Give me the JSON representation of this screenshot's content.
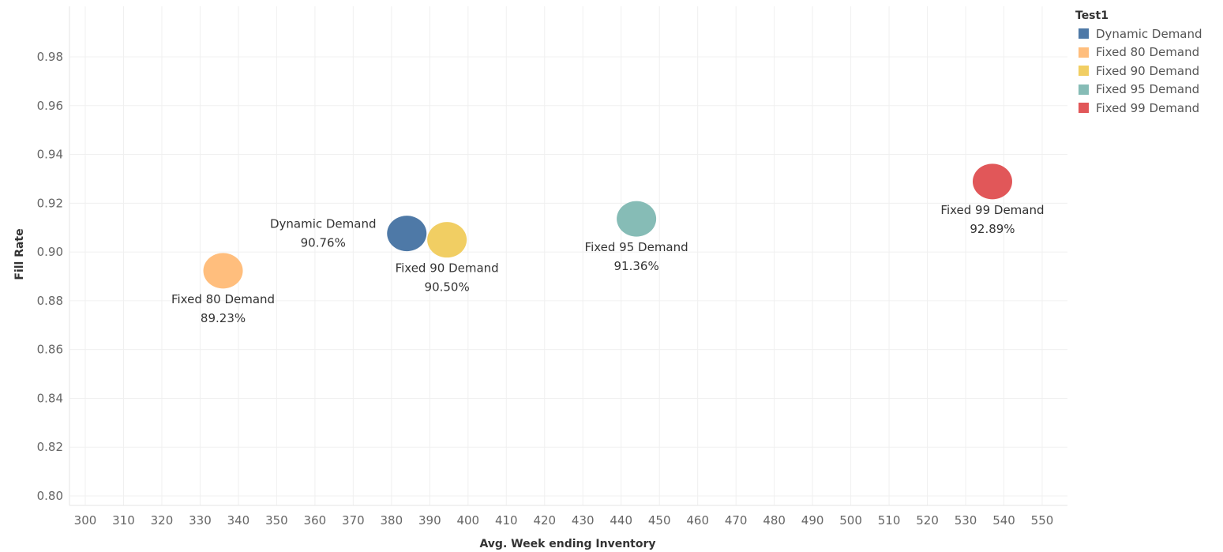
{
  "chart_data": {
    "type": "scatter",
    "title": "",
    "xlabel": "Avg. Week ending Inventory",
    "ylabel": "Fill Rate",
    "xlim": [
      292,
      556
    ],
    "ylim": [
      0.795,
      0.999
    ],
    "x_ticks": [
      300,
      310,
      320,
      330,
      340,
      350,
      360,
      370,
      380,
      390,
      400,
      410,
      420,
      430,
      440,
      450,
      460,
      470,
      480,
      490,
      500,
      510,
      520,
      530,
      540,
      550
    ],
    "y_ticks": [
      "0.80",
      "0.82",
      "0.84",
      "0.86",
      "0.88",
      "0.90",
      "0.92",
      "0.94",
      "0.96",
      "0.98"
    ],
    "grid": true,
    "legend": {
      "title": "Test1",
      "placement": "top-right",
      "items": [
        {
          "label": "Dynamic Demand",
          "color": "#4e79a7"
        },
        {
          "label": "Fixed 80 Demand",
          "color": "#ffbe7d"
        },
        {
          "label": "Fixed 90 Demand",
          "color": "#f1ce63"
        },
        {
          "label": "Fixed 95 Demand",
          "color": "#86bcb6"
        },
        {
          "label": "Fixed 99 Demand",
          "color": "#e15759"
        }
      ]
    },
    "series": [
      {
        "name": "Dynamic Demand",
        "x": 384,
        "y": 0.9076,
        "label": "Dynamic Demand",
        "value_label": "90.76%",
        "color": "#4e79a7",
        "label_pos": "left"
      },
      {
        "name": "Fixed 80 Demand",
        "x": 336,
        "y": 0.8923,
        "label": "Fixed 80 Demand",
        "value_label": "89.23%",
        "color": "#ffbe7d",
        "label_pos": "below"
      },
      {
        "name": "Fixed 90 Demand",
        "x": 394.5,
        "y": 0.905,
        "label": "Fixed 90 Demand",
        "value_label": "90.50%",
        "color": "#f1ce63",
        "label_pos": "below"
      },
      {
        "name": "Fixed 95 Demand",
        "x": 444,
        "y": 0.9136,
        "label": "Fixed 95 Demand",
        "value_label": "91.36%",
        "color": "#86bcb6",
        "label_pos": "below"
      },
      {
        "name": "Fixed 99 Demand",
        "x": 537,
        "y": 0.9289,
        "label": "Fixed 99 Demand",
        "value_label": "92.89%",
        "color": "#e15759",
        "label_pos": "below"
      }
    ]
  }
}
